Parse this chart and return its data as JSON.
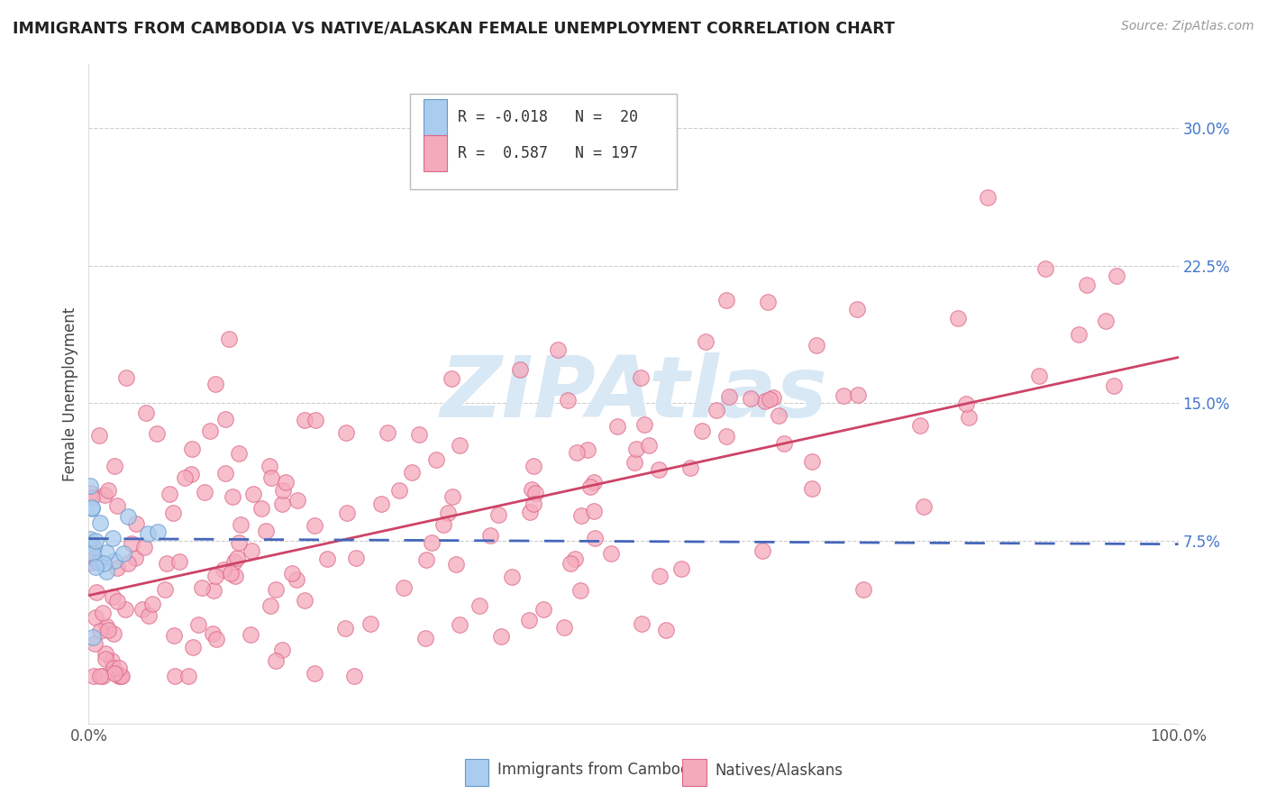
{
  "title": "IMMIGRANTS FROM CAMBODIA VS NATIVE/ALASKAN FEMALE UNEMPLOYMENT CORRELATION CHART",
  "source": "Source: ZipAtlas.com",
  "ylabel": "Female Unemployment",
  "xlim": [
    0.0,
    1.0
  ],
  "ylim": [
    -0.025,
    0.335
  ],
  "blue_color": "#AACCEE",
  "pink_color": "#F5AABC",
  "blue_edge": "#6699CC",
  "pink_edge": "#DD6688",
  "trend_blue": "#4466BB",
  "trend_pink": "#CC4466",
  "watermark_color": "#D8E8F5",
  "grid_color": "#CCCCCC",
  "ytick_color": "#4477CC",
  "title_color": "#222222",
  "source_color": "#999999",
  "legend_text_color": "#333333"
}
